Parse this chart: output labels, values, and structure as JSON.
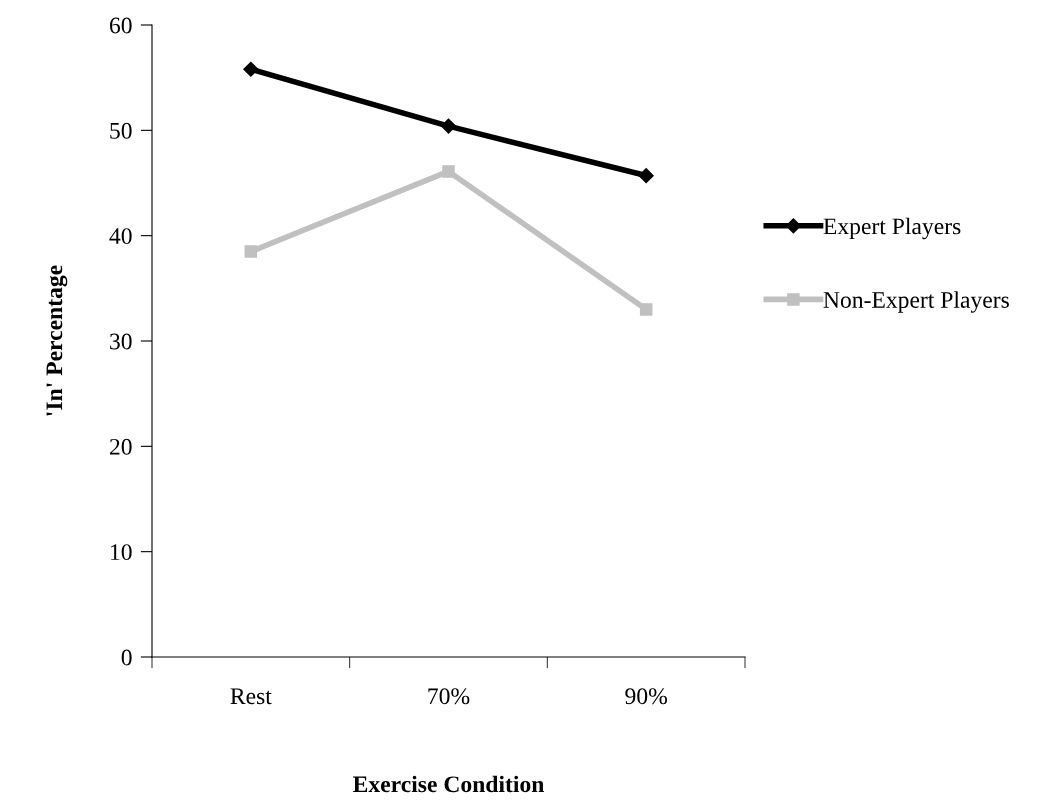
{
  "chart_data": {
    "type": "line",
    "xlabel": "Exercise Condition",
    "ylabel": "'In' Percentage",
    "categories": [
      "Rest",
      "70%",
      "90%"
    ],
    "series": [
      {
        "name": "Expert Players",
        "color": "#000000",
        "marker": "diamond",
        "values": [
          55.8,
          50.4,
          45.7
        ]
      },
      {
        "name": "Non-Expert Players",
        "color": "#c0c0c0",
        "marker": "square",
        "values": [
          38.5,
          46.1,
          33.0
        ]
      }
    ],
    "ylim": [
      0,
      60
    ],
    "yticks": [
      0,
      10,
      20,
      30,
      40,
      50,
      60
    ],
    "grid": false,
    "legend": "right"
  }
}
